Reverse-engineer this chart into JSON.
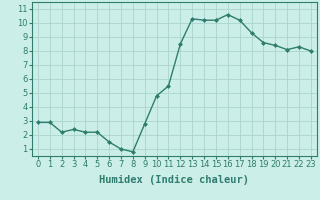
{
  "x": [
    0,
    1,
    2,
    3,
    4,
    5,
    6,
    7,
    8,
    9,
    10,
    11,
    12,
    13,
    14,
    15,
    16,
    17,
    18,
    19,
    20,
    21,
    22,
    23
  ],
  "y": [
    2.9,
    2.9,
    2.2,
    2.4,
    2.2,
    2.2,
    1.5,
    1.0,
    0.8,
    2.8,
    4.8,
    5.5,
    8.5,
    10.3,
    10.2,
    10.2,
    10.6,
    10.2,
    9.3,
    8.6,
    8.4,
    8.1,
    8.3,
    8.0
  ],
  "line_color": "#2e7d6e",
  "marker": "D",
  "markersize": 2.0,
  "linewidth": 1.0,
  "bg_color": "#cceee8",
  "grid_color": "#aad4ce",
  "xlabel": "Humidex (Indice chaleur)",
  "xlabel_fontsize": 7.5,
  "ylabel_ticks": [
    1,
    2,
    3,
    4,
    5,
    6,
    7,
    8,
    9,
    10,
    11
  ],
  "xlim": [
    -0.5,
    23.5
  ],
  "ylim": [
    0.5,
    11.5
  ],
  "xticks": [
    0,
    1,
    2,
    3,
    4,
    5,
    6,
    7,
    8,
    9,
    10,
    11,
    12,
    13,
    14,
    15,
    16,
    17,
    18,
    19,
    20,
    21,
    22,
    23
  ],
  "tick_fontsize": 6.0,
  "tick_color": "#2e7d6e",
  "axis_color": "#2e7d6e",
  "spine_color": "#2e7d6e"
}
